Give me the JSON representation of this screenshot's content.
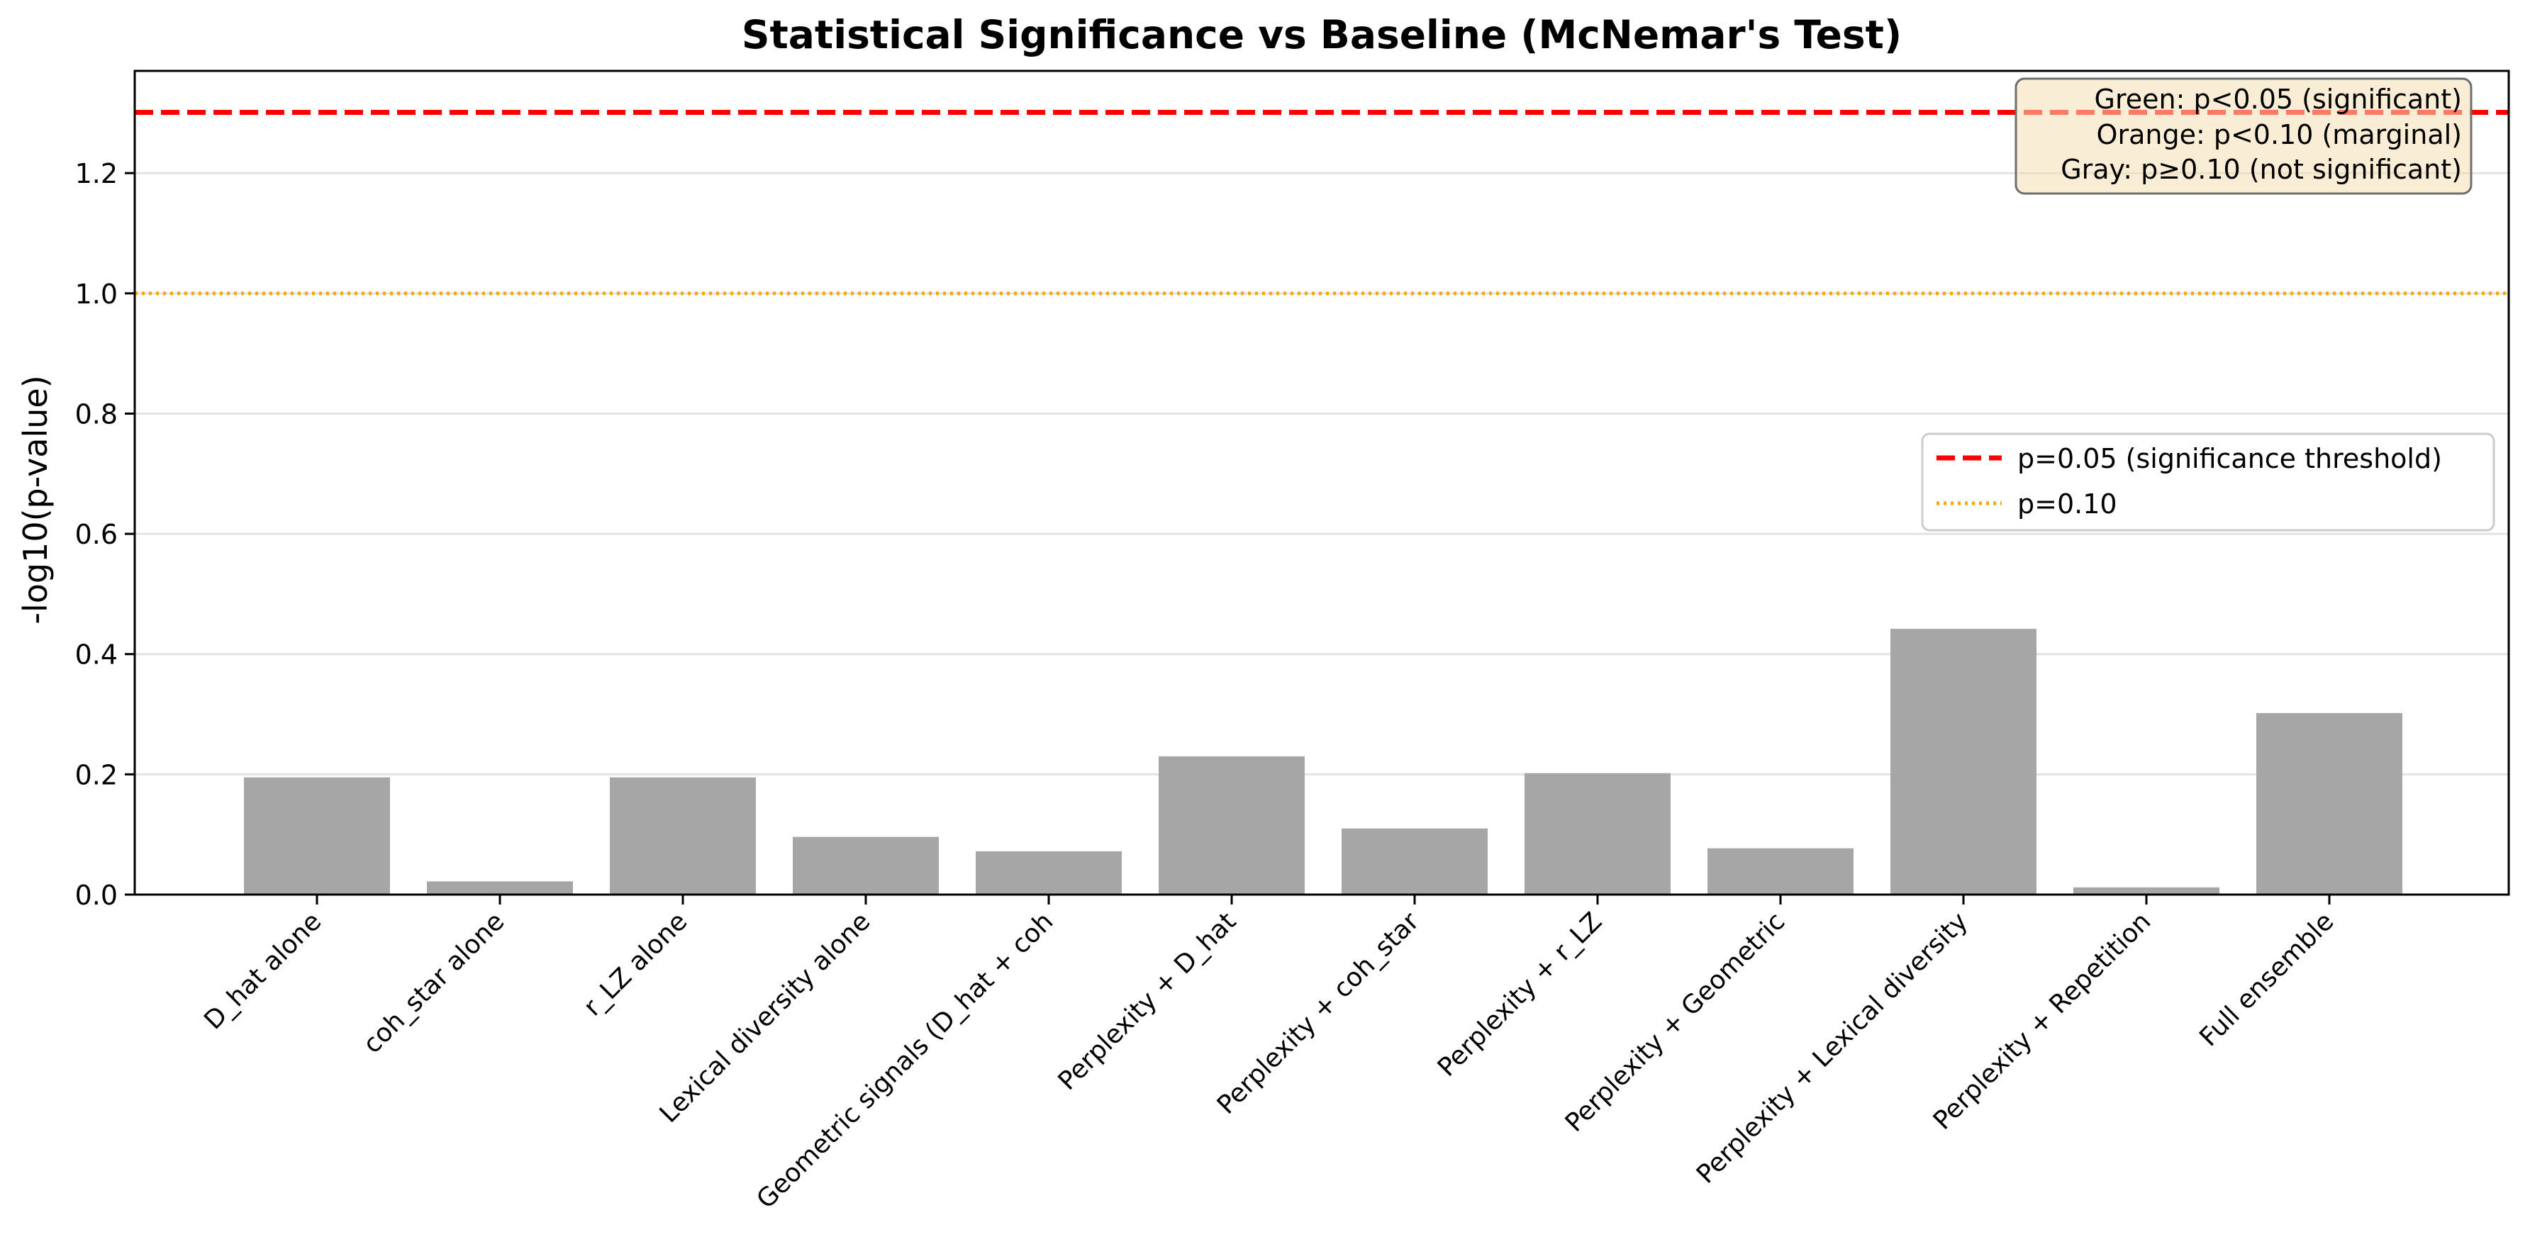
{
  "chart_data": {
    "type": "bar",
    "title": "Statistical Significance vs Baseline (McNemar's Test)",
    "xlabel": "",
    "ylabel": "-log10(p-value)",
    "ylim": [
      0,
      1.37
    ],
    "yticks": [
      0.0,
      0.2,
      0.4,
      0.6,
      0.8,
      1.0,
      1.2
    ],
    "grid": "y",
    "bar_color": "#a6a6a6",
    "categories": [
      "D_hat alone",
      "coh_star alone",
      "r_LZ alone",
      "Lexical diversity alone",
      "Geometric signals (D_hat + coh",
      "Perplexity + D_hat",
      "Perplexity + coh_star",
      "Perplexity + r_LZ",
      "Perplexity + Geometric",
      "Perplexity + Lexical diversity",
      "Perplexity + Repetition",
      "Full ensemble"
    ],
    "values": [
      0.195,
      0.022,
      0.195,
      0.096,
      0.072,
      0.23,
      0.11,
      0.202,
      0.077,
      0.442,
      0.012,
      0.302
    ],
    "reference_lines": [
      {
        "label": "p=0.05 (significance threshold)",
        "value": 1.301,
        "color": "#ff0000",
        "style": "dashed"
      },
      {
        "label": "p=0.10",
        "value": 1.0,
        "color": "#ffa500",
        "style": "dotted"
      }
    ],
    "legend_placement": "center-right",
    "annotation": {
      "placement": "top-right",
      "lines": [
        "Green: p<0.05 (significant)",
        "Orange: p<0.10 (marginal)",
        "Gray: p≥0.10 (not significant)"
      ]
    }
  }
}
